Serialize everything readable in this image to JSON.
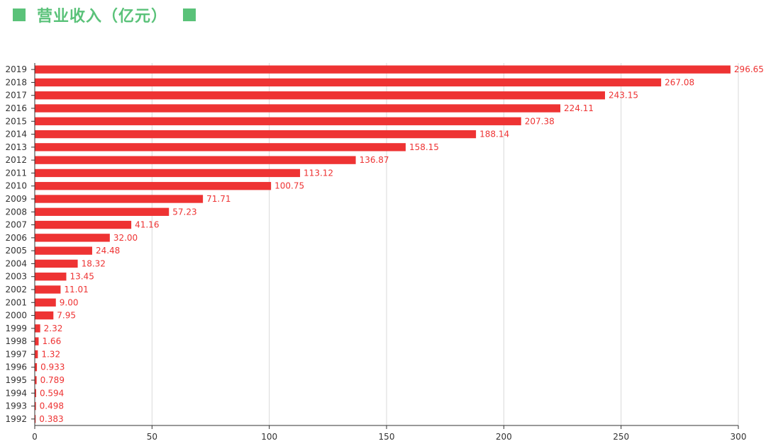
{
  "colors": {
    "bar": "#ee3333",
    "title": "#5ac279",
    "grid": "#d9d9d9",
    "axis": "#333333",
    "label": "#ee3333"
  },
  "chart_data": {
    "type": "bar",
    "orientation": "horizontal",
    "title": "营业收入（亿元）",
    "categories": [
      "2019",
      "2018",
      "2017",
      "2016",
      "2015",
      "2014",
      "2013",
      "2012",
      "2011",
      "2010",
      "2009",
      "2008",
      "2007",
      "2006",
      "2005",
      "2004",
      "2003",
      "2002",
      "2001",
      "2000",
      "1999",
      "1998",
      "1997",
      "1996",
      "1995",
      "1994",
      "1993",
      "1992"
    ],
    "values": [
      296.65,
      267.08,
      243.15,
      224.11,
      207.38,
      188.14,
      158.15,
      136.87,
      113.12,
      100.75,
      71.71,
      57.23,
      41.16,
      32.0,
      24.48,
      18.32,
      13.45,
      11.01,
      9.0,
      7.95,
      2.32,
      1.66,
      1.32,
      0.933,
      0.789,
      0.594,
      0.498,
      0.383
    ],
    "value_labels": [
      "296.65",
      "267.08",
      "243.15",
      "224.11",
      "207.38",
      "188.14",
      "158.15",
      "136.87",
      "113.12",
      "100.75",
      "71.71",
      "57.23",
      "41.16",
      "32.00",
      "24.48",
      "18.32",
      "13.45",
      "11.01",
      "9.00",
      "7.95",
      "2.32",
      "1.66",
      "1.32",
      "0.933",
      "0.789",
      "0.594",
      "0.498",
      "0.383"
    ],
    "xlim": [
      0,
      300
    ],
    "xticks": [
      0,
      50,
      100,
      150,
      200,
      250,
      300
    ],
    "grid": true,
    "legend_placement": "top-left"
  }
}
